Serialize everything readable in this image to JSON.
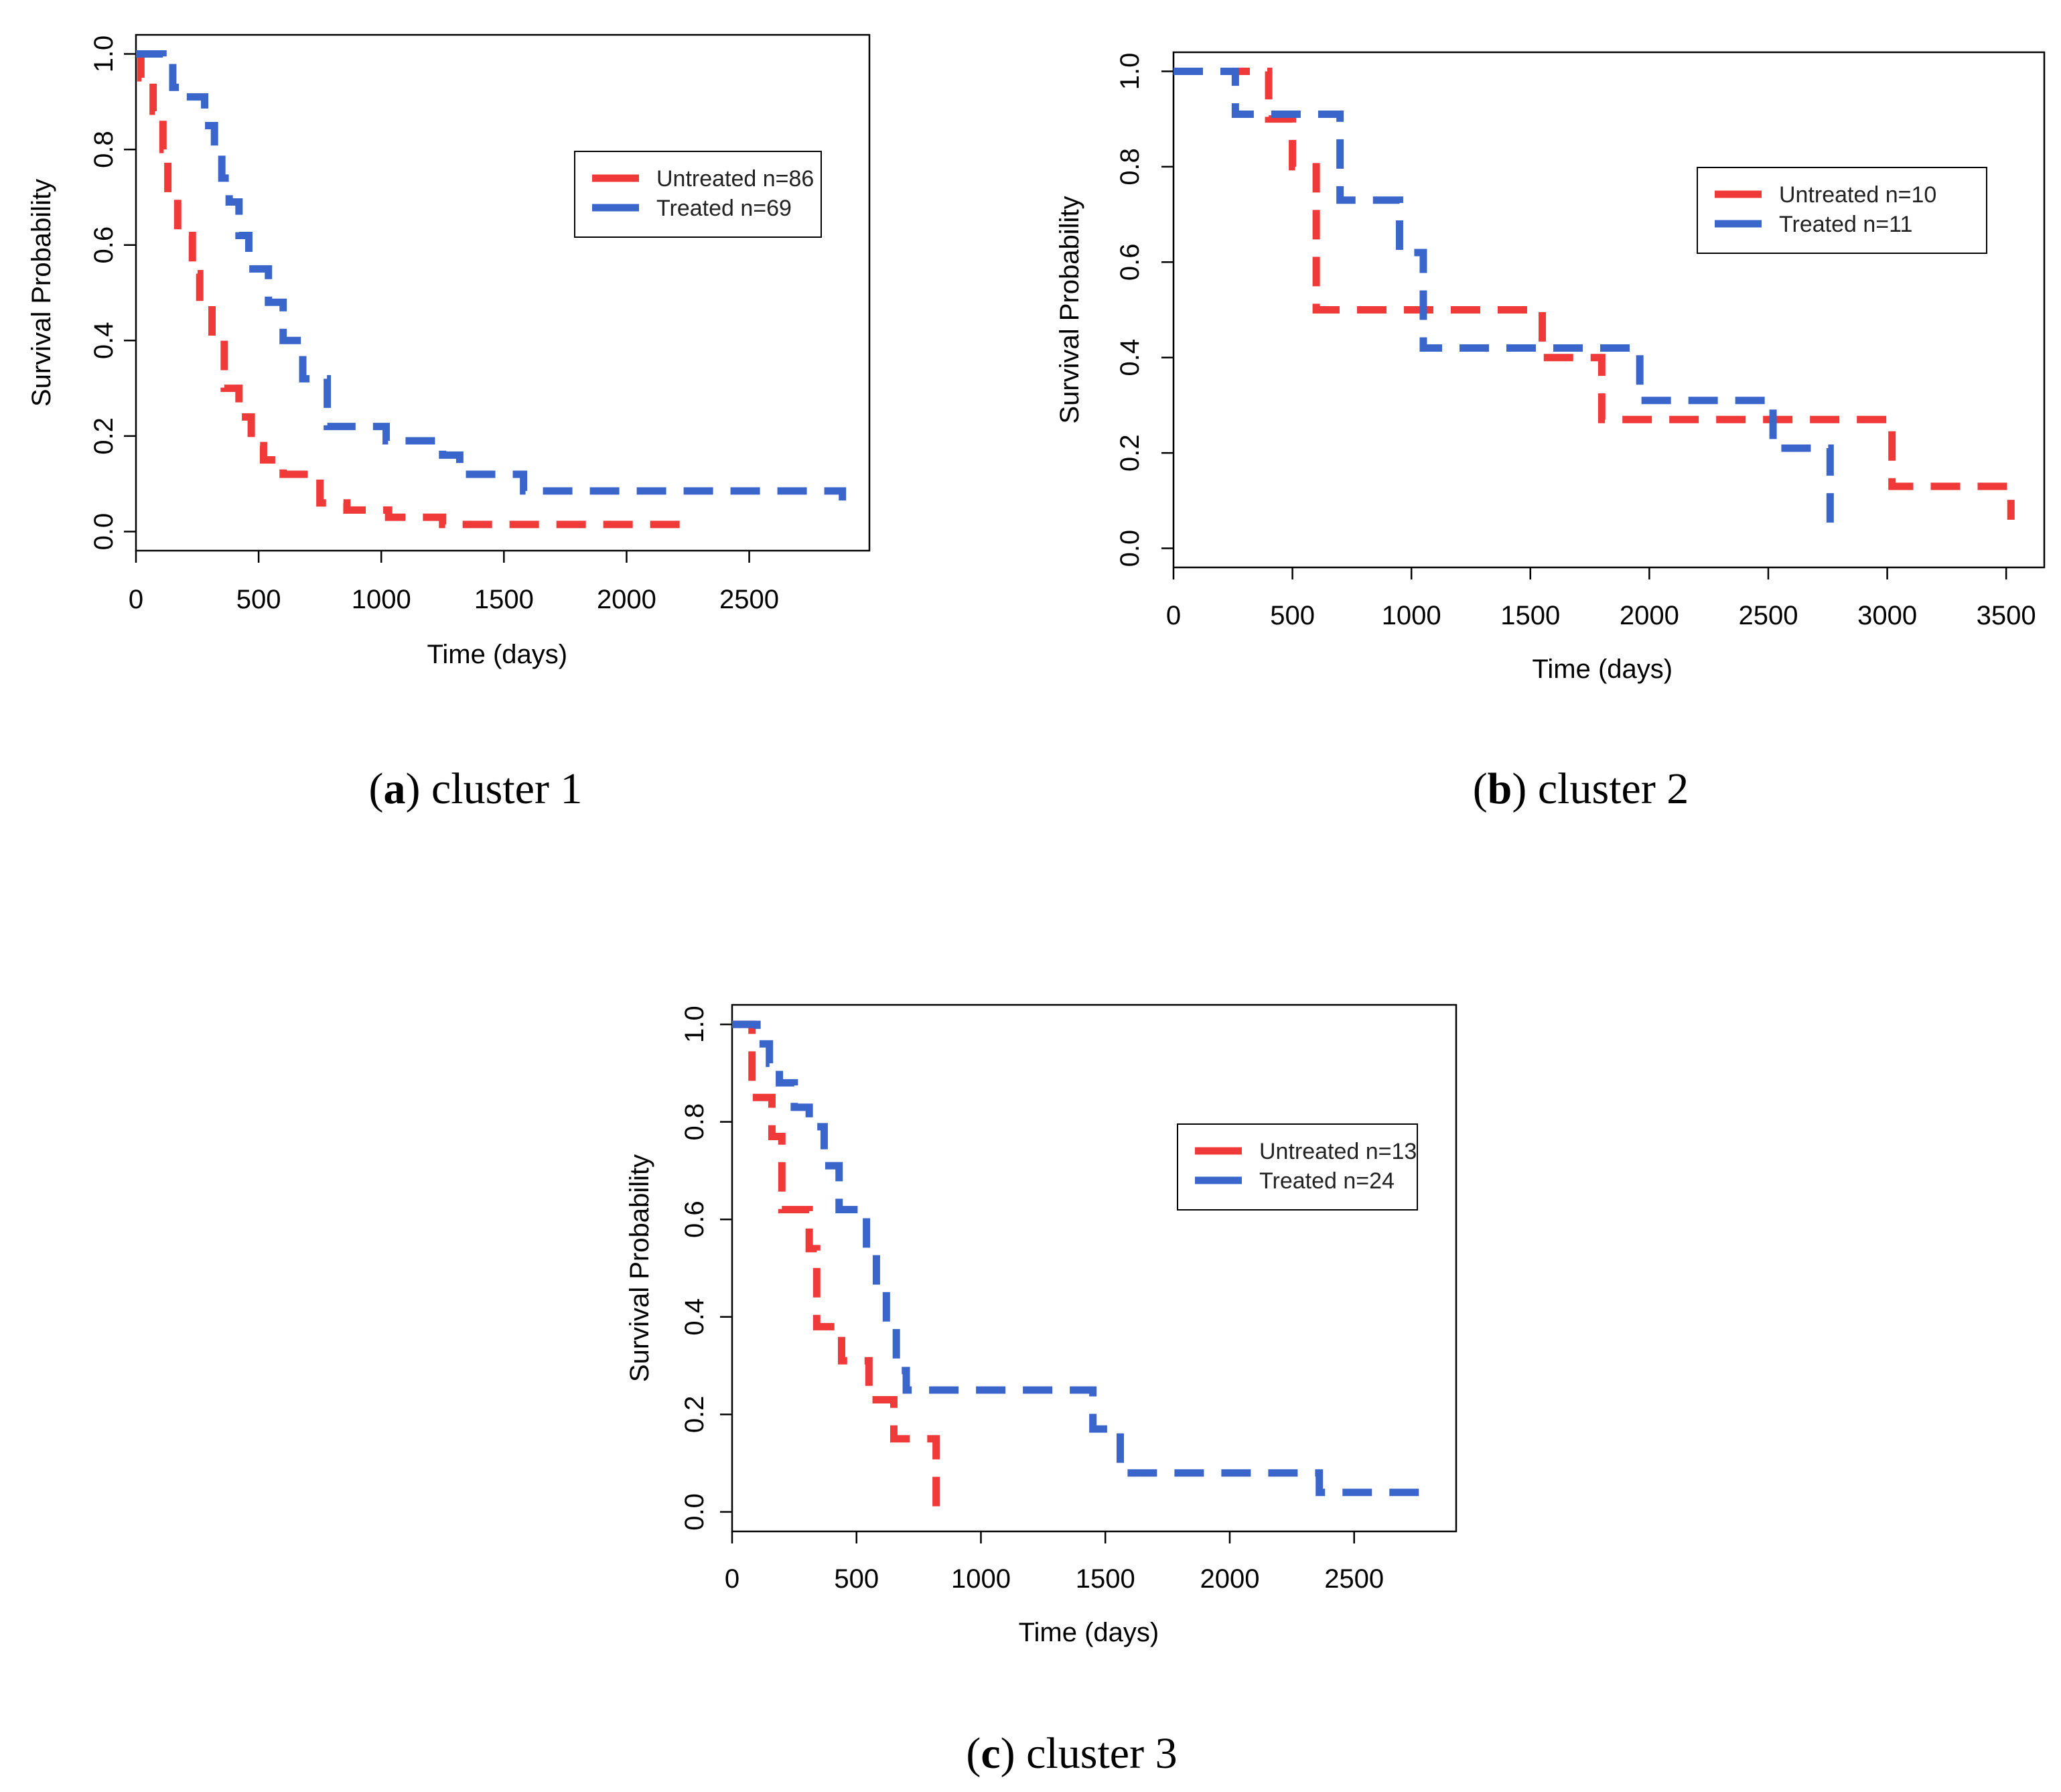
{
  "colors": {
    "untreated": "#f03a3a",
    "treated": "#3a66cc"
  },
  "captions": [
    {
      "letter": "a",
      "text": " cluster 1"
    },
    {
      "letter": "b",
      "text": " cluster 2"
    },
    {
      "letter": "c",
      "text": " cluster 3"
    }
  ],
  "chart_data": [
    {
      "type": "line",
      "title": "cluster 1",
      "xlabel": "Time (days)",
      "ylabel": "Survival Probability",
      "xlim": [
        0,
        3000
      ],
      "ylim": [
        0,
        1.0
      ],
      "xticks": [
        0,
        500,
        1000,
        1500,
        2000,
        2500
      ],
      "yticks": [
        "0.0",
        "0.2",
        "0.4",
        "0.6",
        "0.8",
        "1.0"
      ],
      "legend_position": "top-right",
      "series": [
        {
          "name": "Untreated n=86",
          "color_key": "untreated",
          "x": [
            0,
            20,
            70,
            110,
            130,
            170,
            230,
            260,
            310,
            360,
            420,
            470,
            520,
            600,
            750,
            860,
            1030,
            1250,
            2220
          ],
          "y": [
            1.0,
            0.95,
            0.88,
            0.8,
            0.7,
            0.62,
            0.54,
            0.48,
            0.4,
            0.3,
            0.24,
            0.18,
            0.15,
            0.12,
            0.06,
            0.045,
            0.03,
            0.015,
            0.0
          ]
        },
        {
          "name": "Treated n=69",
          "color_key": "treated",
          "x": [
            0,
            110,
            150,
            200,
            280,
            320,
            350,
            380,
            420,
            460,
            540,
            600,
            680,
            780,
            1020,
            1250,
            1320,
            1580,
            2880
          ],
          "y": [
            1.0,
            0.98,
            0.93,
            0.91,
            0.85,
            0.8,
            0.74,
            0.69,
            0.62,
            0.55,
            0.48,
            0.4,
            0.32,
            0.22,
            0.19,
            0.16,
            0.12,
            0.085,
            0.065
          ]
        }
      ]
    },
    {
      "type": "line",
      "title": "cluster 2",
      "xlabel": "Time (days)",
      "ylabel": "Survival Probability",
      "xlim": [
        0,
        3500
      ],
      "ylim": [
        0,
        1.0
      ],
      "xticks": [
        0,
        500,
        1000,
        1500,
        2000,
        2500,
        3000,
        3500
      ],
      "yticks": [
        "0.0",
        "0.2",
        "0.4",
        "0.6",
        "0.8",
        "1.0"
      ],
      "legend_position": "top-right",
      "series": [
        {
          "name": "Untreated n=10",
          "color_key": "untreated",
          "x": [
            0,
            400,
            500,
            600,
            600,
            1550,
            1800,
            3020,
            3520
          ],
          "y": [
            1.0,
            0.9,
            0.8,
            0.6,
            0.5,
            0.4,
            0.27,
            0.13,
            0.06
          ]
        },
        {
          "name": "Treated n=11",
          "color_key": "treated",
          "x": [
            0,
            260,
            700,
            700,
            950,
            1050,
            1050,
            1650,
            1960,
            2250,
            2520,
            2640,
            2760
          ],
          "y": [
            1.0,
            0.91,
            0.82,
            0.73,
            0.62,
            0.51,
            0.42,
            0.42,
            0.31,
            0.31,
            0.21,
            0.21,
            0.03
          ]
        }
      ]
    },
    {
      "type": "line",
      "title": "cluster 3",
      "xlabel": "Time (days)",
      "ylabel": "Survival Probability",
      "xlim": [
        0,
        2900
      ],
      "ylim": [
        0,
        1.0
      ],
      "xticks": [
        0,
        500,
        1000,
        1500,
        2000,
        2500
      ],
      "yticks": [
        "0.0",
        "0.2",
        "0.4",
        "0.6",
        "0.8",
        "1.0"
      ],
      "legend_position": "top-right",
      "series": [
        {
          "name": "Untreated n=13",
          "color_key": "untreated",
          "x": [
            0,
            80,
            160,
            200,
            310,
            340,
            440,
            550,
            650,
            820
          ],
          "y": [
            1.0,
            0.85,
            0.77,
            0.62,
            0.54,
            0.38,
            0.31,
            0.23,
            0.15,
            0.0
          ]
        },
        {
          "name": "Treated n=24",
          "color_key": "treated",
          "x": [
            0,
            100,
            150,
            190,
            250,
            310,
            370,
            430,
            540,
            580,
            620,
            660,
            700,
            1450,
            1560,
            2360,
            2780
          ],
          "y": [
            1.0,
            0.96,
            0.92,
            0.88,
            0.83,
            0.79,
            0.71,
            0.62,
            0.54,
            0.46,
            0.38,
            0.29,
            0.25,
            0.17,
            0.08,
            0.04,
            0.04
          ]
        }
      ]
    }
  ]
}
